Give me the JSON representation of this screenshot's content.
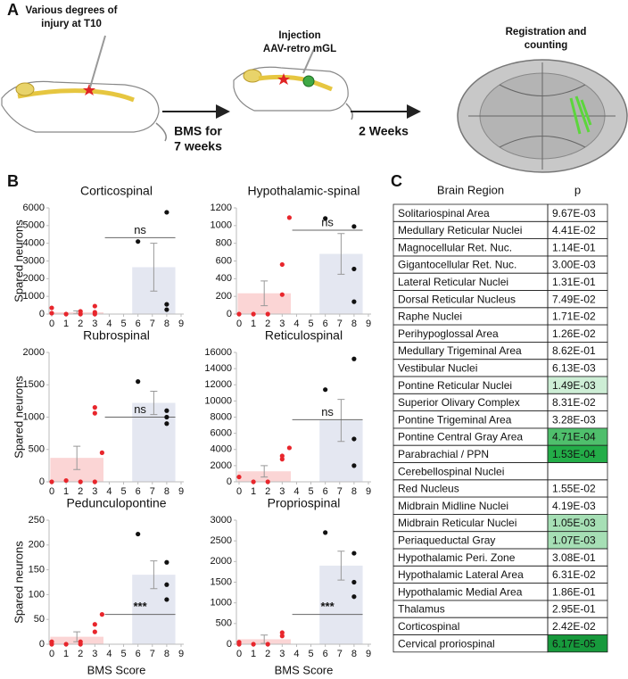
{
  "panels": [
    "A",
    "B",
    "C"
  ],
  "schematic": {
    "injury": [
      "Various degrees of",
      "injury at T10"
    ],
    "injection": [
      "Injection",
      "AAV-retro mGL"
    ],
    "bms": [
      "BMS for",
      "7 weeks"
    ],
    "wait": "2 Weeks",
    "registration": [
      "Registration and",
      "counting"
    ]
  },
  "chart_data": [
    {
      "type": "bar-scatter",
      "title": "Corticospinal",
      "ylabel": "Spared neurons",
      "xlim": [
        0,
        9
      ],
      "xticks": [
        0,
        1,
        2,
        3,
        4,
        5,
        6,
        7,
        8,
        9
      ],
      "ylim": [
        0,
        6000
      ],
      "yticks": [
        0,
        1000,
        2000,
        3000,
        4000,
        5000,
        6000
      ],
      "bars": {
        "values": [
          100,
          2650
        ],
        "errors": [
          80,
          1350
        ],
        "colors": [
          "#fbd5d5",
          "#e4e7f1"
        ]
      },
      "series": [
        {
          "color": "#e8262c",
          "x": [
            0,
            0,
            1,
            2,
            2,
            3,
            3,
            3
          ],
          "values": [
            350,
            50,
            0,
            150,
            0,
            450,
            100,
            0
          ]
        },
        {
          "color": "#111111",
          "x": [
            6,
            8,
            8,
            8
          ],
          "values": [
            4100,
            5750,
            550,
            250
          ]
        }
      ],
      "annotation": "ns"
    },
    {
      "type": "bar-scatter",
      "title": "Hypothalamic-spinal",
      "xlim": [
        0,
        9
      ],
      "xticks": [
        0,
        1,
        2,
        3,
        4,
        5,
        6,
        7,
        8,
        9
      ],
      "ylim": [
        0,
        1200
      ],
      "yticks": [
        0,
        200,
        400,
        600,
        800,
        1000,
        1200
      ],
      "bars": {
        "values": [
          235,
          680
        ],
        "errors": [
          140,
          230
        ],
        "colors": [
          "#fbd5d5",
          "#e4e7f1"
        ]
      },
      "series": [
        {
          "color": "#e8262c",
          "x": [
            0,
            1,
            2,
            3,
            3,
            3.5
          ],
          "values": [
            0,
            0,
            0,
            220,
            560,
            1090
          ]
        },
        {
          "color": "#111111",
          "x": [
            6,
            8,
            8,
            8
          ],
          "values": [
            1080,
            990,
            510,
            140
          ]
        }
      ],
      "annotation": "ns"
    },
    {
      "type": "bar-scatter",
      "title": "Rubrospinal",
      "ylabel": "Spared neurons",
      "xlim": [
        0,
        9
      ],
      "xticks": [
        0,
        1,
        2,
        3,
        4,
        5,
        6,
        7,
        8,
        9
      ],
      "ylim": [
        0,
        2000
      ],
      "yticks": [
        0,
        500,
        1000,
        1500,
        2000
      ],
      "bars": {
        "values": [
          370,
          1220
        ],
        "errors": [
          180,
          180
        ],
        "colors": [
          "#fbd5d5",
          "#e4e7f1"
        ]
      },
      "series": [
        {
          "color": "#e8262c",
          "x": [
            0,
            1,
            2,
            3,
            3,
            3,
            3.5
          ],
          "values": [
            0,
            20,
            0,
            0,
            1150,
            1060,
            450
          ]
        },
        {
          "color": "#111111",
          "x": [
            6,
            8,
            8,
            8
          ],
          "values": [
            1550,
            1100,
            1000,
            900
          ]
        }
      ],
      "annotation": "ns"
    },
    {
      "type": "bar-scatter",
      "title": "Reticulospinal",
      "xlim": [
        0,
        9
      ],
      "xticks": [
        0,
        1,
        2,
        3,
        4,
        5,
        6,
        7,
        8,
        9
      ],
      "ylim": [
        0,
        16000
      ],
      "yticks": [
        0,
        2000,
        4000,
        6000,
        8000,
        10000,
        12000,
        14000,
        16000
      ],
      "bars": {
        "values": [
          1300,
          7600
        ],
        "errors": [
          700,
          2600
        ],
        "colors": [
          "#fbd5d5",
          "#e4e7f1"
        ]
      },
      "series": [
        {
          "color": "#e8262c",
          "x": [
            0,
            1,
            2,
            3,
            3,
            3.5
          ],
          "values": [
            600,
            0,
            0,
            2800,
            3200,
            4200
          ]
        },
        {
          "color": "#111111",
          "x": [
            6,
            8,
            8,
            8
          ],
          "values": [
            11400,
            15200,
            5300,
            2000
          ]
        }
      ],
      "annotation": "ns"
    },
    {
      "type": "bar-scatter",
      "title": "Pedunculopontine",
      "ylabel": "Spared neurons",
      "xlabel": "BMS Score",
      "xlim": [
        0,
        9
      ],
      "xticks": [
        0,
        1,
        2,
        3,
        4,
        5,
        6,
        7,
        8,
        9
      ],
      "ylim": [
        0,
        250
      ],
      "yticks": [
        0,
        50,
        100,
        150,
        200,
        250
      ],
      "bars": {
        "values": [
          15,
          140
        ],
        "errors": [
          10,
          28
        ],
        "colors": [
          "#fbd5d5",
          "#e4e7f1"
        ]
      },
      "series": [
        {
          "color": "#e8262c",
          "x": [
            0,
            0,
            1,
            2,
            2,
            3,
            3,
            3.5
          ],
          "values": [
            0,
            5,
            0,
            0,
            5,
            25,
            40,
            60
          ]
        },
        {
          "color": "#111111",
          "x": [
            6,
            8,
            8,
            8
          ],
          "values": [
            222,
            165,
            120,
            90
          ]
        }
      ],
      "annotation": "***"
    },
    {
      "type": "bar-scatter",
      "title": "Propriospinal",
      "xlabel": "BMS Score",
      "xlim": [
        0,
        9
      ],
      "xticks": [
        0,
        1,
        2,
        3,
        4,
        5,
        6,
        7,
        8,
        9
      ],
      "ylim": [
        0,
        3000
      ],
      "yticks": [
        0,
        500,
        1000,
        1500,
        2000,
        2500,
        3000
      ],
      "bars": {
        "values": [
          120,
          1900
        ],
        "errors": [
          100,
          350
        ],
        "colors": [
          "#fbd5d5",
          "#e4e7f1"
        ]
      },
      "series": [
        {
          "color": "#e8262c",
          "x": [
            0,
            0,
            1,
            2,
            3,
            3
          ],
          "values": [
            50,
            0,
            0,
            0,
            280,
            200
          ]
        },
        {
          "color": "#111111",
          "x": [
            6,
            8,
            8,
            8
          ],
          "values": [
            2700,
            2200,
            1500,
            1150
          ]
        }
      ],
      "annotation": "***"
    }
  ],
  "table": {
    "header": [
      "Brain Region",
      "p"
    ],
    "rows": [
      [
        "Solitariospinal Area",
        "9.67E-03"
      ],
      [
        "Medullary Reticular Nuclei",
        "4.41E-02"
      ],
      [
        "Magnocellular Ret. Nuc.",
        "1.14E-01"
      ],
      [
        "Gigantocellular Ret. Nuc.",
        "3.00E-03"
      ],
      [
        "Lateral Reticular Nuclei",
        "1.31E-01"
      ],
      [
        "Dorsal Reticular Nucleus",
        "7.49E-02"
      ],
      [
        "Raphe Nuclei",
        "1.71E-02"
      ],
      [
        "Perihypoglossal Area",
        "1.26E-02"
      ],
      [
        "Medullary Trigeminal Area",
        "8.62E-01"
      ],
      [
        "Vestibular Nuclei",
        "6.13E-03"
      ],
      [
        "Pontine Reticular Nuclei",
        "1.49E-03"
      ],
      [
        "Superior Olivary Complex",
        "8.31E-02"
      ],
      [
        "Pontine Trigeminal Area",
        "3.28E-03"
      ],
      [
        "Pontine Central Gray Area",
        "4.71E-04"
      ],
      [
        "Parabrachial / PPN",
        "1.53E-04"
      ],
      [
        "Cerebellospinal Nuclei",
        null
      ],
      [
        "Red Nucleus",
        "1.55E-02"
      ],
      [
        "Midbrain Midline Nuclei",
        "4.19E-03"
      ],
      [
        "Midbrain Reticular Nuclei",
        "1.05E-03"
      ],
      [
        "Periaqueductal Gray",
        "1.07E-03"
      ],
      [
        "Hypothalamic Peri. Zone",
        "3.08E-01"
      ],
      [
        "Hypothalamic Lateral Area",
        "6.31E-02"
      ],
      [
        "Hypothalamic Medial Area",
        "1.86E-01"
      ],
      [
        "Thalamus",
        "2.95E-01"
      ],
      [
        "Corticospinal",
        "2.42E-02"
      ],
      [
        "Cervical proriospinal",
        "6.17E-05"
      ]
    ],
    "p_colors": [
      null,
      null,
      null,
      null,
      null,
      null,
      null,
      null,
      null,
      null,
      "#cdeed5",
      null,
      null,
      "#4fbf6c",
      "#23ad48",
      null,
      null,
      null,
      "#a6dfb5",
      "#a6dfb5",
      null,
      null,
      null,
      null,
      null,
      "#17993c"
    ]
  }
}
